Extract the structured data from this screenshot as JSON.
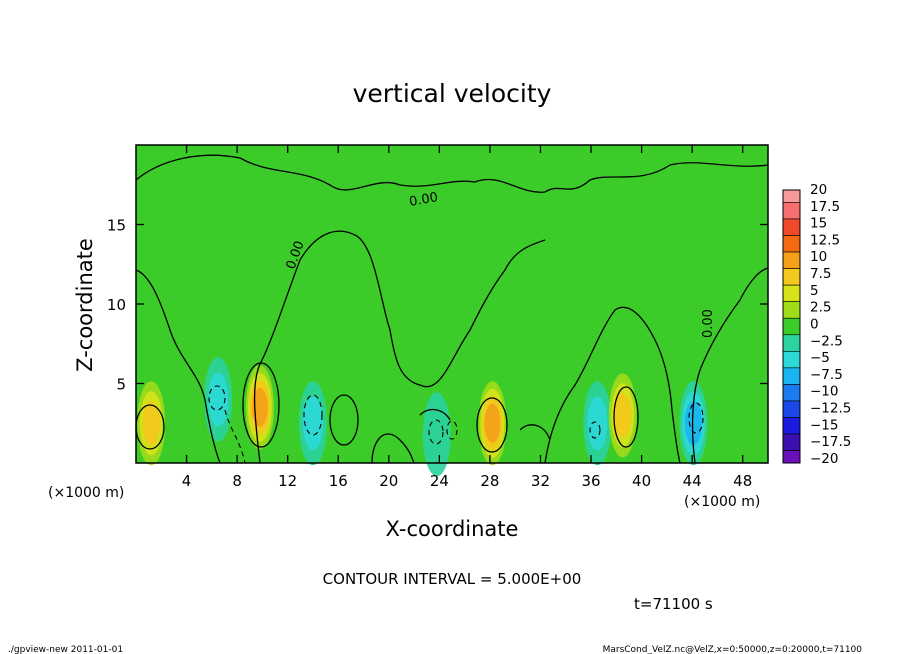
{
  "chart_data": {
    "type": "heatmap",
    "title": "vertical velocity",
    "xlabel": "X-coordinate",
    "ylabel": "Z-coordinate",
    "x_unit_label": "(×1000 m)",
    "x_unit_label_right": "(×1000 m)",
    "xlim": [
      0,
      50
    ],
    "ylim": [
      0,
      20
    ],
    "x_ticks": [
      4,
      8,
      12,
      16,
      20,
      24,
      28,
      32,
      36,
      40,
      44,
      48
    ],
    "y_ticks": [
      5,
      10,
      15
    ],
    "contour_labels": [
      "0.00",
      "0.00",
      "0.00"
    ],
    "colorbar": {
      "labels": [
        "20",
        "17.5",
        "15",
        "12.5",
        "10",
        "7.5",
        "5",
        "2.5",
        "0",
        "−2.5",
        "−5",
        "−7.5",
        "−10",
        "−12.5",
        "−15",
        "−17.5",
        "−20"
      ],
      "colors": [
        "#f89a9a",
        "#f76f6f",
        "#f04a2a",
        "#f46a10",
        "#f4a01a",
        "#f4c81c",
        "#d6e21a",
        "#a0dc1a",
        "#3ccc2a",
        "#2ad3a0",
        "#2cd8d8",
        "#1ab4f0",
        "#1a7cf0",
        "#1a48e8",
        "#1a1ae0",
        "#3a10b0",
        "#6a10b8"
      ],
      "range": [
        -20,
        20
      ],
      "interval": 2.5
    },
    "features": [
      {
        "x": 1.2,
        "z": 2.5,
        "w": 8
      },
      {
        "x": 6.5,
        "z": 4.0,
        "w": -6
      },
      {
        "x": 9.8,
        "z": 3.5,
        "w": 10
      },
      {
        "x": 14.0,
        "z": 2.5,
        "w": -4
      },
      {
        "x": 23.8,
        "z": 1.8,
        "w": -3
      },
      {
        "x": 28.2,
        "z": 2.5,
        "w": 9
      },
      {
        "x": 36.5,
        "z": 2.5,
        "w": -5
      },
      {
        "x": 38.5,
        "z": 3.0,
        "w": 8
      },
      {
        "x": 44.1,
        "z": 2.5,
        "w": -7
      }
    ]
  },
  "annotations": {
    "contour_interval": "CONTOUR INTERVAL = 5.000E+00",
    "time": "t=71100 s",
    "footer_left": "./gpview-new   2011-01-01",
    "footer_right": "MarsCond_VelZ.nc@VelZ,x=0:50000,z=0:20000,t=71100"
  }
}
